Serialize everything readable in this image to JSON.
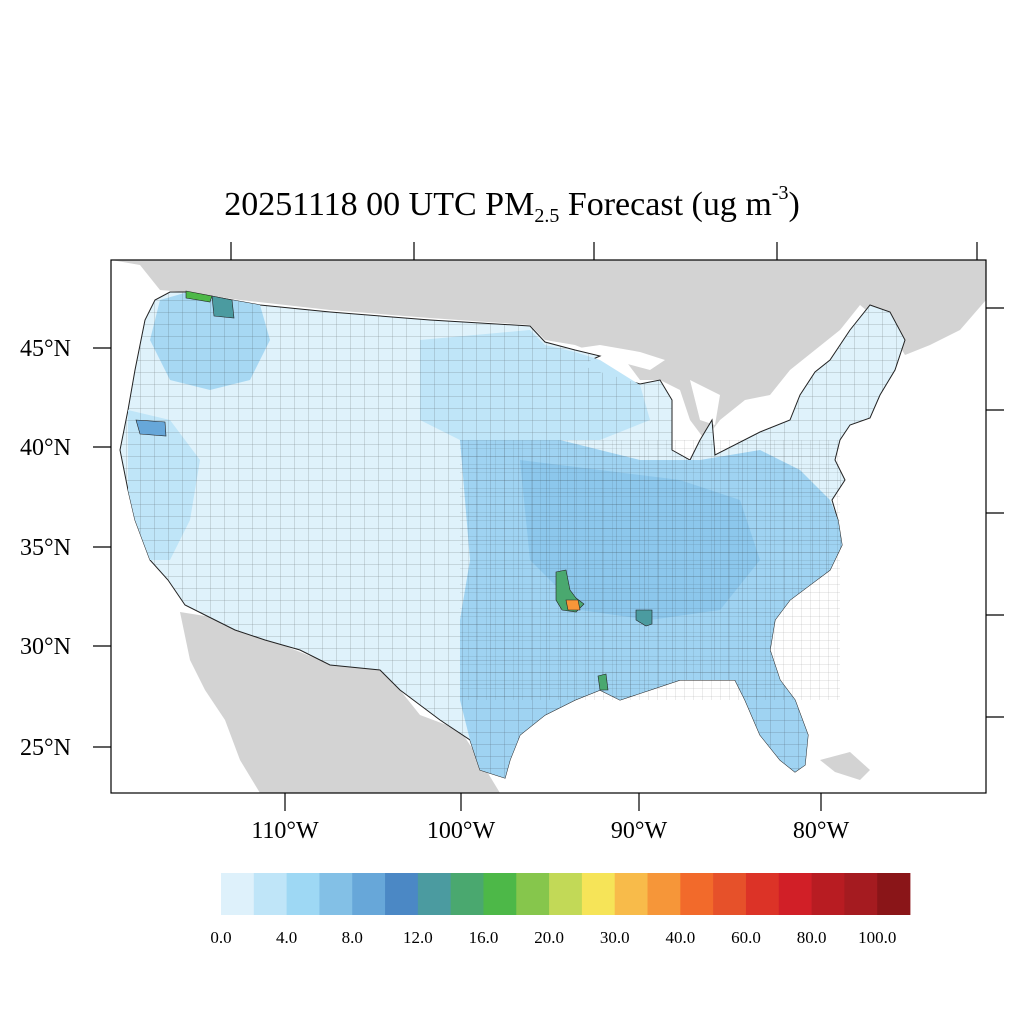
{
  "title": {
    "main": "20251118 00 UTC PM",
    "subscript": "2.5",
    "tail": " Forecast (ug m",
    "superscript": "-3",
    "close": ")"
  },
  "axes": {
    "lat_labels": [
      "45°N",
      "40°N",
      "35°N",
      "30°N",
      "25°N"
    ],
    "lon_labels": [
      "110°W",
      "100°W",
      "90°W",
      "80°W"
    ]
  },
  "colorbar": {
    "colors": [
      "#def1fb",
      "#bfe5f8",
      "#9ed8f4",
      "#83c0e6",
      "#67a7d9",
      "#4b88c5",
      "#4b9ba0",
      "#4aa86f",
      "#4db848",
      "#86c64c",
      "#c2d957",
      "#f6e458",
      "#f8bb4a",
      "#f69639",
      "#f26a2b",
      "#e6512a",
      "#dc3327",
      "#d11f27",
      "#b81c22",
      "#a51b20",
      "#8a1518"
    ],
    "tick_labels": [
      "0.0",
      "4.0",
      "8.0",
      "12.0",
      "16.0",
      "20.0",
      "30.0",
      "40.0",
      "60.0",
      "80.0",
      "100.0"
    ]
  },
  "map": {
    "land_color": "#d3d3d3",
    "water_color": "#ffffff",
    "county_fill": "#c4e6f7",
    "county_line_color": "#1a1a1a"
  }
}
